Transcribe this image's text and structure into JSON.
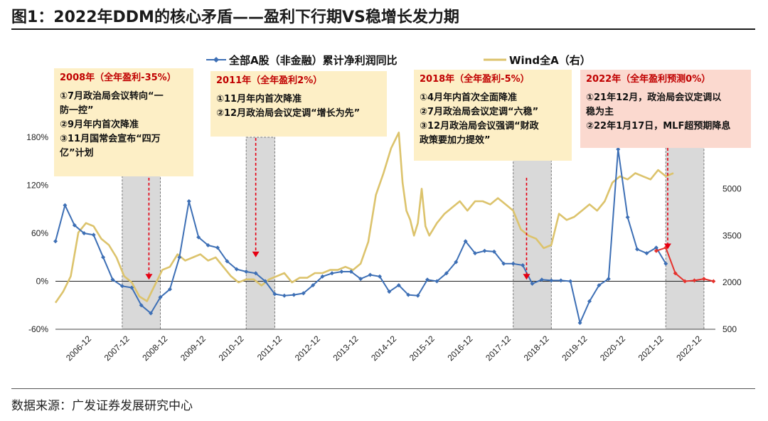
{
  "title": "图1：2022年DDM的核心矛盾——盈利下行期VS稳增长发力期",
  "source": "数据来源：广发证券发展研究中心",
  "colors": {
    "blue": "#3d6fb5",
    "gold": "#dcc36c",
    "red": "#e5322d",
    "shade": "#d9d9d9",
    "arrow": "#e60012"
  },
  "annotations": [
    {
      "head": "2008年（全年盈利-35%）",
      "lines": [
        "①7月政治局会议转向“一",
        "防一控”",
        "②9月年内首次降准",
        "③11月国常会宣布“四万",
        "亿”计划"
      ]
    },
    {
      "head": "2011年（全年盈利2%）",
      "lines": [
        "①11月年内首次降准",
        "②12月政治局会议定调“增长为先”"
      ]
    },
    {
      "head": "2018年（全年盈利-5%）",
      "lines": [
        "①4月年内首次全面降准",
        "②7月政治局会议定调“六稳”",
        "③12月政治局会议强调“财政",
        "政策要加力提效”"
      ]
    },
    {
      "head": "2022年（全年盈利预测0%）",
      "lines": [
        "①21年12月，政治局会议定调以",
        "稳为主",
        "②22年1月17日，MLF超预期降息"
      ]
    }
  ],
  "chart_data": {
    "type": "line",
    "legend": [
      "全部A股（非金融）累计净利润同比",
      "Wind全A（右）"
    ],
    "x_ticks": [
      "2006-12",
      "2007-12",
      "2008-12",
      "2009-12",
      "2010-12",
      "2011-12",
      "2012-12",
      "2013-12",
      "2014-12",
      "2015-12",
      "2016-12",
      "2017-12",
      "2018-12",
      "2019-12",
      "2020-12",
      "2021-12",
      "2022-12"
    ],
    "y_left": {
      "ticks": [
        "-60%",
        "0%",
        "60%",
        "120%",
        "180%"
      ],
      "range": [
        -60,
        180
      ]
    },
    "y_right": {
      "ticks": [
        "500",
        "2000",
        "3500",
        "5000"
      ],
      "range": [
        500,
        6650
      ]
    },
    "shaded_periods": [
      [
        2007.75,
        2008.75
      ],
      [
        2011.0,
        2011.75
      ],
      [
        2018.0,
        2019.0
      ],
      [
        2022.0,
        2023.0
      ]
    ],
    "arrows": [
      2008.45,
      2011.25,
      2018.35,
      2022.05
    ],
    "series": [
      {
        "name": "全部A股（非金融）累计净利润同比",
        "axis": "left",
        "color": "#3d6fb5",
        "x": [
          2006.0,
          2006.25,
          2006.5,
          2006.75,
          2007.0,
          2007.25,
          2007.5,
          2007.75,
          2008.0,
          2008.25,
          2008.5,
          2008.75,
          2009.0,
          2009.25,
          2009.5,
          2009.75,
          2010.0,
          2010.25,
          2010.5,
          2010.75,
          2011.0,
          2011.25,
          2011.5,
          2011.75,
          2012.0,
          2012.25,
          2012.5,
          2012.75,
          2013.0,
          2013.25,
          2013.5,
          2013.75,
          2014.0,
          2014.25,
          2014.5,
          2014.75,
          2015.0,
          2015.25,
          2015.5,
          2015.75,
          2016.0,
          2016.25,
          2016.5,
          2016.75,
          2017.0,
          2017.25,
          2017.5,
          2017.75,
          2018.0,
          2018.25,
          2018.5,
          2018.75,
          2019.0,
          2019.25,
          2019.5,
          2019.75,
          2020.0,
          2020.25,
          2020.5,
          2020.75,
          2021.0,
          2021.25,
          2021.5,
          2021.75,
          2022.0
        ],
        "values": [
          50,
          95,
          70,
          60,
          58,
          30,
          2,
          -6,
          -8,
          -30,
          -40,
          -20,
          -10,
          30,
          100,
          55,
          45,
          42,
          25,
          15,
          12,
          10,
          0,
          -16,
          -18,
          -17,
          -15,
          -5,
          6,
          10,
          12,
          12,
          3,
          8,
          6,
          -13,
          -5,
          -17,
          -18,
          2,
          0,
          10,
          24,
          50,
          35,
          38,
          37,
          22,
          22,
          20,
          -3,
          2,
          1,
          1,
          0,
          -52,
          -25,
          -5,
          3,
          165,
          80,
          40,
          35,
          42,
          22
        ]
      },
      {
        "name": "2022年盈利预测",
        "axis": "left",
        "color": "#e5322d",
        "x": [
          2021.75,
          2022.0,
          2022.25,
          2022.5,
          2022.75,
          2023.0,
          2023.25
        ],
        "values": [
          38,
          42,
          10,
          0,
          1,
          3,
          0
        ]
      },
      {
        "name": "Wind全A（右）",
        "axis": "right",
        "color": "#dcc36c",
        "x": [
          2006.0,
          2006.2,
          2006.4,
          2006.6,
          2006.8,
          2007.0,
          2007.2,
          2007.4,
          2007.6,
          2007.8,
          2008.0,
          2008.2,
          2008.4,
          2008.6,
          2008.8,
          2009.0,
          2009.2,
          2009.4,
          2009.6,
          2009.8,
          2010.0,
          2010.2,
          2010.4,
          2010.6,
          2010.8,
          2011.0,
          2011.2,
          2011.4,
          2011.6,
          2011.8,
          2012.0,
          2012.2,
          2012.4,
          2012.6,
          2012.8,
          2013.0,
          2013.2,
          2013.4,
          2013.6,
          2013.8,
          2014.0,
          2014.2,
          2014.4,
          2014.6,
          2014.8,
          2015.0,
          2015.1,
          2015.2,
          2015.3,
          2015.4,
          2015.5,
          2015.6,
          2015.7,
          2015.8,
          2016.0,
          2016.2,
          2016.4,
          2016.6,
          2016.8,
          2017.0,
          2017.2,
          2017.4,
          2017.6,
          2017.8,
          2018.0,
          2018.2,
          2018.4,
          2018.6,
          2018.8,
          2019.0,
          2019.2,
          2019.4,
          2019.6,
          2019.8,
          2020.0,
          2020.2,
          2020.4,
          2020.6,
          2020.8,
          2021.0,
          2021.2,
          2021.4,
          2021.6,
          2021.8,
          2022.0,
          2022.2
        ],
        "values": [
          1350,
          1700,
          2200,
          3600,
          3900,
          3800,
          3400,
          3200,
          2800,
          2200,
          2000,
          1550,
          1400,
          1900,
          2400,
          2500,
          2900,
          2700,
          2800,
          2900,
          2700,
          2800,
          2500,
          2200,
          2000,
          2100,
          2100,
          1900,
          2100,
          2200,
          2300,
          2000,
          2150,
          2150,
          2300,
          2300,
          2400,
          2400,
          2500,
          2400,
          2600,
          3300,
          4800,
          5500,
          6300,
          6800,
          5200,
          4300,
          4000,
          3500,
          3900,
          5000,
          3800,
          3500,
          3900,
          4200,
          4400,
          4600,
          4300,
          4600,
          4600,
          4500,
          4700,
          4500,
          4300,
          3700,
          3500,
          3400,
          3100,
          3200,
          4200,
          4000,
          4100,
          4300,
          4500,
          4300,
          4600,
          5200,
          5400,
          5300,
          5500,
          5400,
          5300,
          5600,
          5400,
          5500
        ]
      }
    ]
  }
}
